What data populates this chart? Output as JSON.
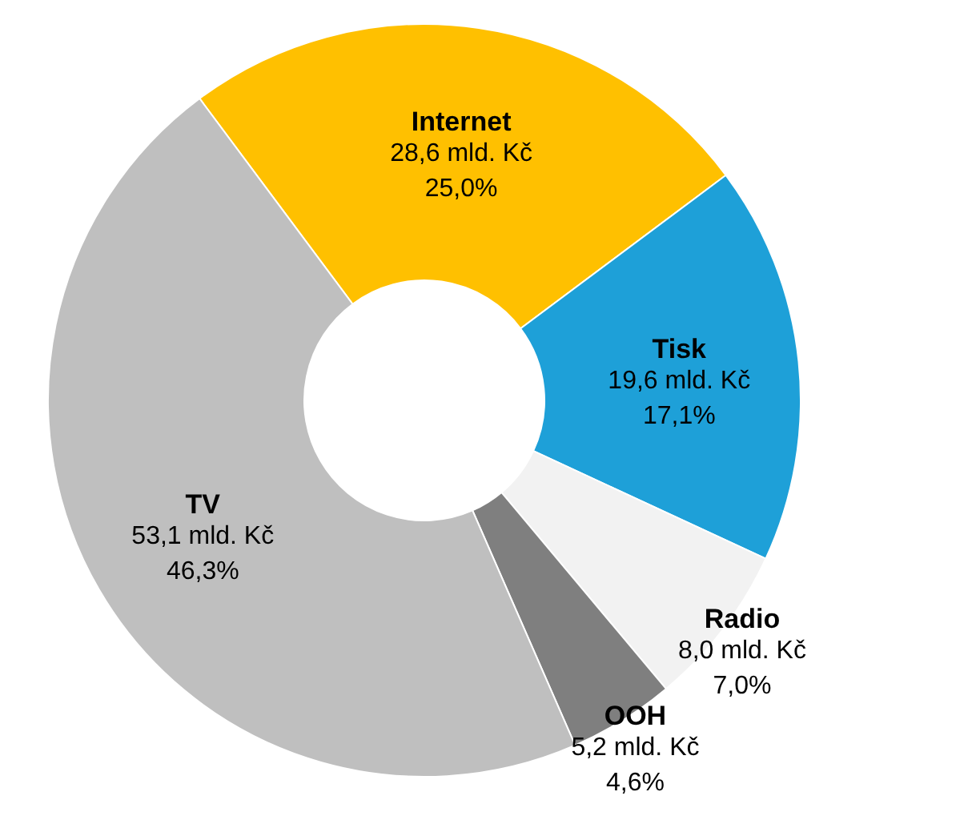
{
  "chart_data": {
    "type": "donut",
    "categories": [
      "Internet",
      "Tisk",
      "Radio",
      "OOH",
      "TV"
    ],
    "values": [
      28.6,
      19.6,
      8.0,
      5.2,
      53.1
    ],
    "colors": [
      "#ffc000",
      "#1ea0d8",
      "#f2f2f2",
      "#7f7f7f",
      "#bfbfbf"
    ],
    "value_labels": [
      "28,6 mld. Kč\n25,0%",
      "19,6 mld. Kč\n17,1%",
      "8,0 mld. Kč\n7,0%",
      "5,2 mld. Kč\n4,6%",
      "53,1 mld. Kč\n46,3%"
    ]
  }
}
